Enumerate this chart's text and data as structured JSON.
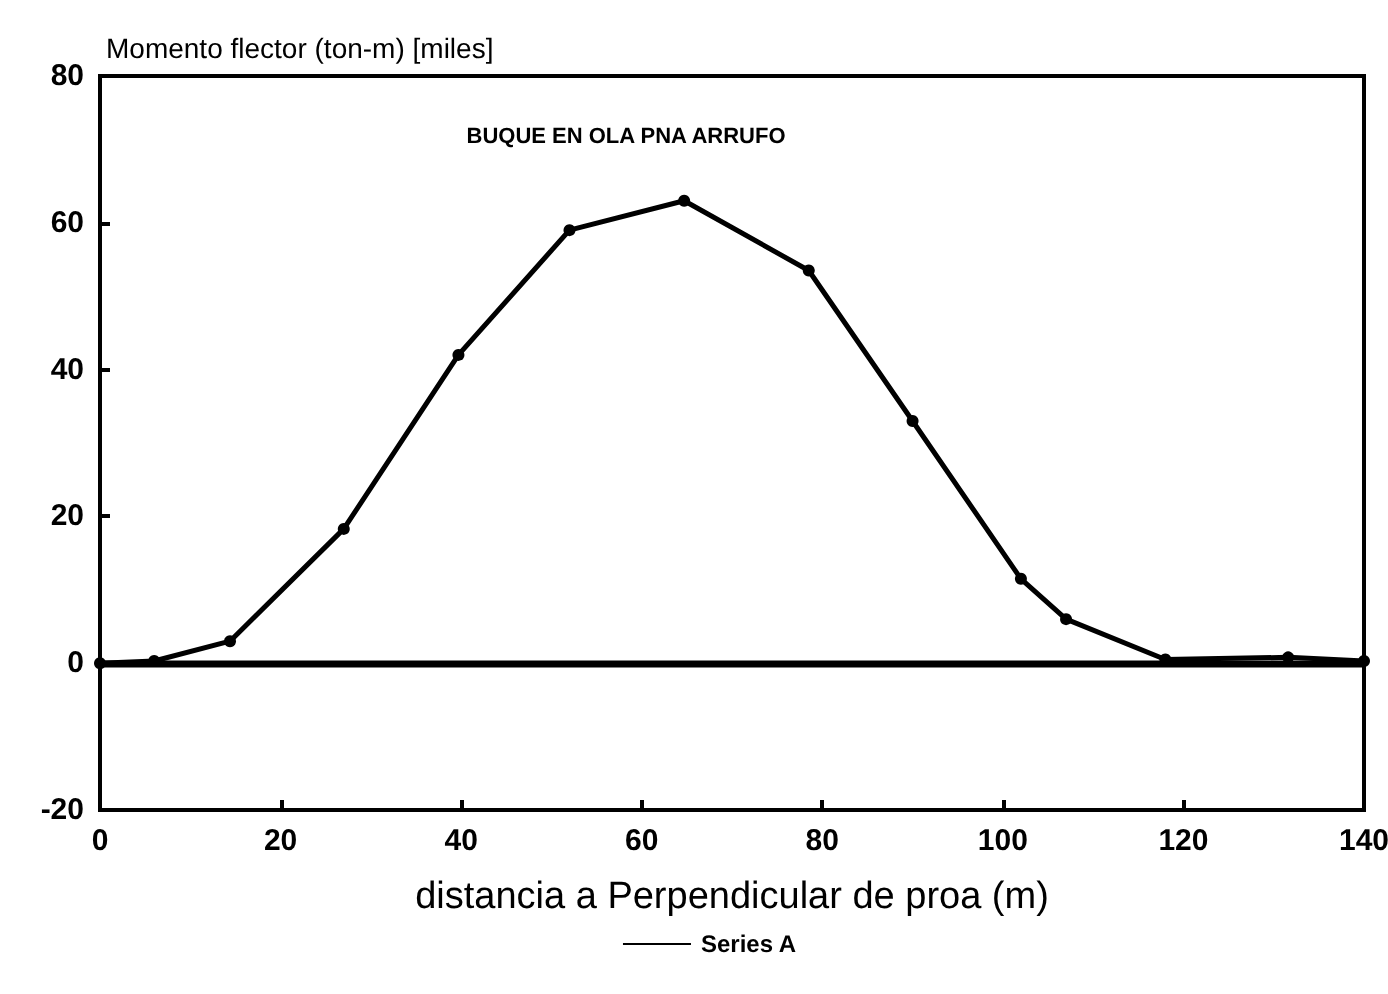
{
  "chart_data": {
    "type": "line",
    "title": "BUQUE EN OLA PNA ARRUFO",
    "xlabel": "distancia a Perpendicular de proa (m)",
    "ylabel": "Momento flector (ton-m) [miles]",
    "series": [
      {
        "name": "Series A",
        "color": "#000000",
        "x": [
          0,
          6,
          14.4,
          27,
          39.7,
          52,
          64.7,
          78.5,
          90,
          102,
          107,
          118,
          131.6,
          140
        ],
        "values": [
          0,
          0.3,
          3,
          18.3,
          42,
          59,
          63,
          53.5,
          33,
          11.5,
          6,
          0.5,
          0.8,
          0.3
        ]
      }
    ],
    "xlim": [
      0,
      140
    ],
    "xticks": [
      0,
      20,
      40,
      60,
      80,
      100,
      120,
      140
    ],
    "ylim": [
      -20,
      80
    ],
    "yticks": [
      -20,
      0,
      20,
      40,
      60,
      80
    ],
    "ref_lines": [
      {
        "axis": "y",
        "value": 0,
        "color": "#000000"
      }
    ],
    "grid": false,
    "legend": "bottom",
    "marker": "circle",
    "line_style": "solid"
  }
}
